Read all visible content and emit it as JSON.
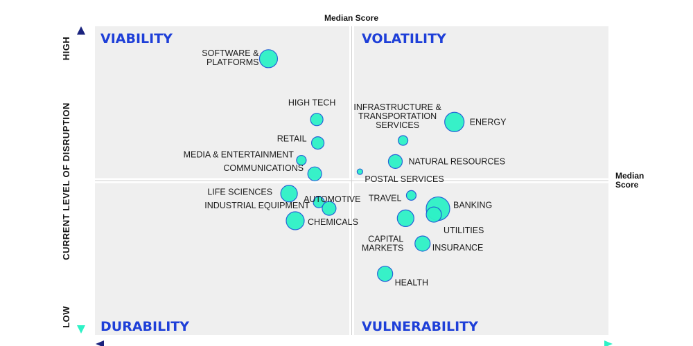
{
  "chart_data": {
    "type": "scatter",
    "title": "",
    "xlabel": "",
    "ylabel": "CURRENT LEVEL OF DISRUPTION",
    "y_high_label": "HIGH",
    "y_low_label": "LOW",
    "median_top_label": "Median Score",
    "median_right_label": "Median Score",
    "xlim": [
      0,
      100
    ],
    "ylim": [
      0,
      100
    ],
    "x_median": 50,
    "y_median": 50,
    "colors": {
      "bubble": "#2ef2c6",
      "bubble_stroke": "#1b5cd6",
      "quadrant_bg": "#efefef",
      "title": "#1e3fd8",
      "axis_top": "#1a237e",
      "axis_bottom": "#2ef2c6"
    },
    "quadrants": {
      "top_left": "VIABILITY",
      "top_right": "VOLATILITY",
      "bottom_left": "DURABILITY",
      "bottom_right": "VULNERABILITY"
    },
    "points": [
      {
        "label": "SOFTWARE & PLATFORMS",
        "x": 33.8,
        "y": 89.5,
        "size": 13
      },
      {
        "label": "HIGH TECH",
        "x": 43.2,
        "y": 69.8,
        "size": 9
      },
      {
        "label": "RETAIL",
        "x": 43.4,
        "y": 62.2,
        "size": 9
      },
      {
        "label": "MEDIA & ENTERTAINMENT",
        "x": 40.2,
        "y": 56.6,
        "size": 7
      },
      {
        "label": "COMMUNICATIONS",
        "x": 42.8,
        "y": 52.2,
        "size": 10
      },
      {
        "label": "LIFE SCIENCES",
        "x": 37.8,
        "y": 45.8,
        "size": 12
      },
      {
        "label": "AUTOMOTIVE",
        "x": 43.6,
        "y": 43.0,
        "size": 8
      },
      {
        "label": "INDUSTRIAL EQUIPMENT",
        "x": 45.6,
        "y": 41.0,
        "size": 10
      },
      {
        "label": "CHEMICALS",
        "x": 39.0,
        "y": 37.0,
        "size": 13
      },
      {
        "label": "INFRASTRUCTURE & TRANSPORTATION SERVICES",
        "x": 60.0,
        "y": 63.0,
        "size": 7
      },
      {
        "label": "ENERGY",
        "x": 70.0,
        "y": 69.0,
        "size": 14
      },
      {
        "label": "NATURAL RESOURCES",
        "x": 58.5,
        "y": 56.2,
        "size": 10
      },
      {
        "label": "POSTAL SERVICES",
        "x": 51.6,
        "y": 52.9,
        "size": 4
      },
      {
        "label": "TRAVEL",
        "x": 61.6,
        "y": 45.2,
        "size": 7
      },
      {
        "label": "BANKING",
        "x": 66.8,
        "y": 40.9,
        "size": 17
      },
      {
        "label": "UTILITIES",
        "x": 66.0,
        "y": 39.0,
        "size": 11
      },
      {
        "label": "CAPITAL MARKETS",
        "x": 60.5,
        "y": 37.8,
        "size": 12
      },
      {
        "label": "INSURANCE",
        "x": 63.8,
        "y": 29.6,
        "size": 11
      },
      {
        "label": "HEALTH",
        "x": 56.5,
        "y": 19.8,
        "size": 11
      }
    ]
  }
}
